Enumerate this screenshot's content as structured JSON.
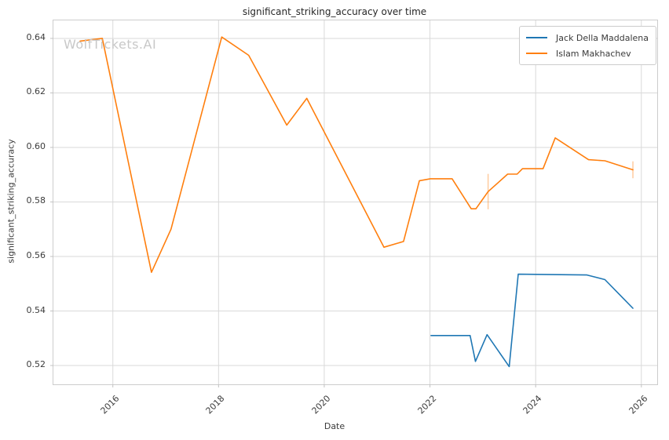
{
  "watermark": "WolfTickets.AI",
  "colors": {
    "grid": "#d9d9d9",
    "axis_border": "#cccccc",
    "tick_mark": "#c2c2c2",
    "text": "#262626",
    "tick_text": "#3b3b3b",
    "watermark_text": "#c8c8c8",
    "series_blue": "#1f77b4",
    "series_orange": "#ff7f0e"
  },
  "chart_data": {
    "type": "line",
    "title": "significant_striking_accuracy over time",
    "xlabel": "Date",
    "ylabel": "significant_striking_accuracy",
    "xlim": [
      2014.875,
      2026.3
    ],
    "ylim": [
      0.5131,
      0.6466
    ],
    "x_ticks": [
      2016,
      2018,
      2020,
      2022,
      2024,
      2026
    ],
    "y_ticks": [
      0.52,
      0.54,
      0.56,
      0.58,
      0.6,
      0.62,
      0.64
    ],
    "grid": true,
    "legend_position": "upper right",
    "series": [
      {
        "name": "Jack Della Maddalena",
        "color": "#1f77b4",
        "points": [
          [
            2022.02,
            0.531
          ],
          [
            2022.76,
            0.531
          ],
          [
            2022.86,
            0.5215
          ],
          [
            2023.08,
            0.5313
          ],
          [
            2023.5,
            0.5196
          ],
          [
            2023.67,
            0.5535
          ],
          [
            2024.97,
            0.5532
          ],
          [
            2025.31,
            0.5515
          ],
          [
            2025.84,
            0.541
          ]
        ],
        "error_bars": []
      },
      {
        "name": "Islam Makhachev",
        "color": "#ff7f0e",
        "points": [
          [
            2015.38,
            0.639
          ],
          [
            2015.8,
            0.64
          ],
          [
            2016.73,
            0.5542
          ],
          [
            2017.1,
            0.57
          ],
          [
            2018.06,
            0.6405
          ],
          [
            2018.57,
            0.6338
          ],
          [
            2019.29,
            0.6082
          ],
          [
            2019.67,
            0.618
          ],
          [
            2021.13,
            0.5634
          ],
          [
            2021.5,
            0.5655
          ],
          [
            2021.8,
            0.5878
          ],
          [
            2022.01,
            0.5885
          ],
          [
            2022.42,
            0.5885
          ],
          [
            2022.78,
            0.5775
          ],
          [
            2022.87,
            0.5775
          ],
          [
            2023.1,
            0.5838
          ],
          [
            2023.47,
            0.5902
          ],
          [
            2023.65,
            0.5902
          ],
          [
            2023.75,
            0.5922
          ],
          [
            2024.14,
            0.5922
          ],
          [
            2024.37,
            0.6035
          ],
          [
            2025.0,
            0.5955
          ],
          [
            2025.31,
            0.5951
          ],
          [
            2025.84,
            0.5918
          ]
        ],
        "error_bars": [
          {
            "x": 2023.1,
            "y": 0.5838,
            "err": 0.0065
          },
          {
            "x": 2025.84,
            "y": 0.5918,
            "err": 0.0031
          }
        ]
      }
    ]
  }
}
